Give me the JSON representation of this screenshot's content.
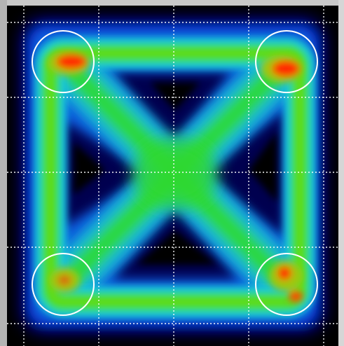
{
  "view": {
    "background_color": "#000000",
    "bezel_color": "#c8c8c8",
    "grid": {
      "visible": true,
      "style": "dotted",
      "color": "#ffffff",
      "divisions": 4
    },
    "colormap": [
      "#000000",
      "#0000c8",
      "#0a6cff",
      "#12c8e6",
      "#28e028",
      "#8ad414",
      "#ff2a00"
    ]
  },
  "markers": [
    {
      "label": "top-left"
    },
    {
      "label": "top-right"
    },
    {
      "label": "bottom-left"
    },
    {
      "label": "bottom-right"
    }
  ]
}
